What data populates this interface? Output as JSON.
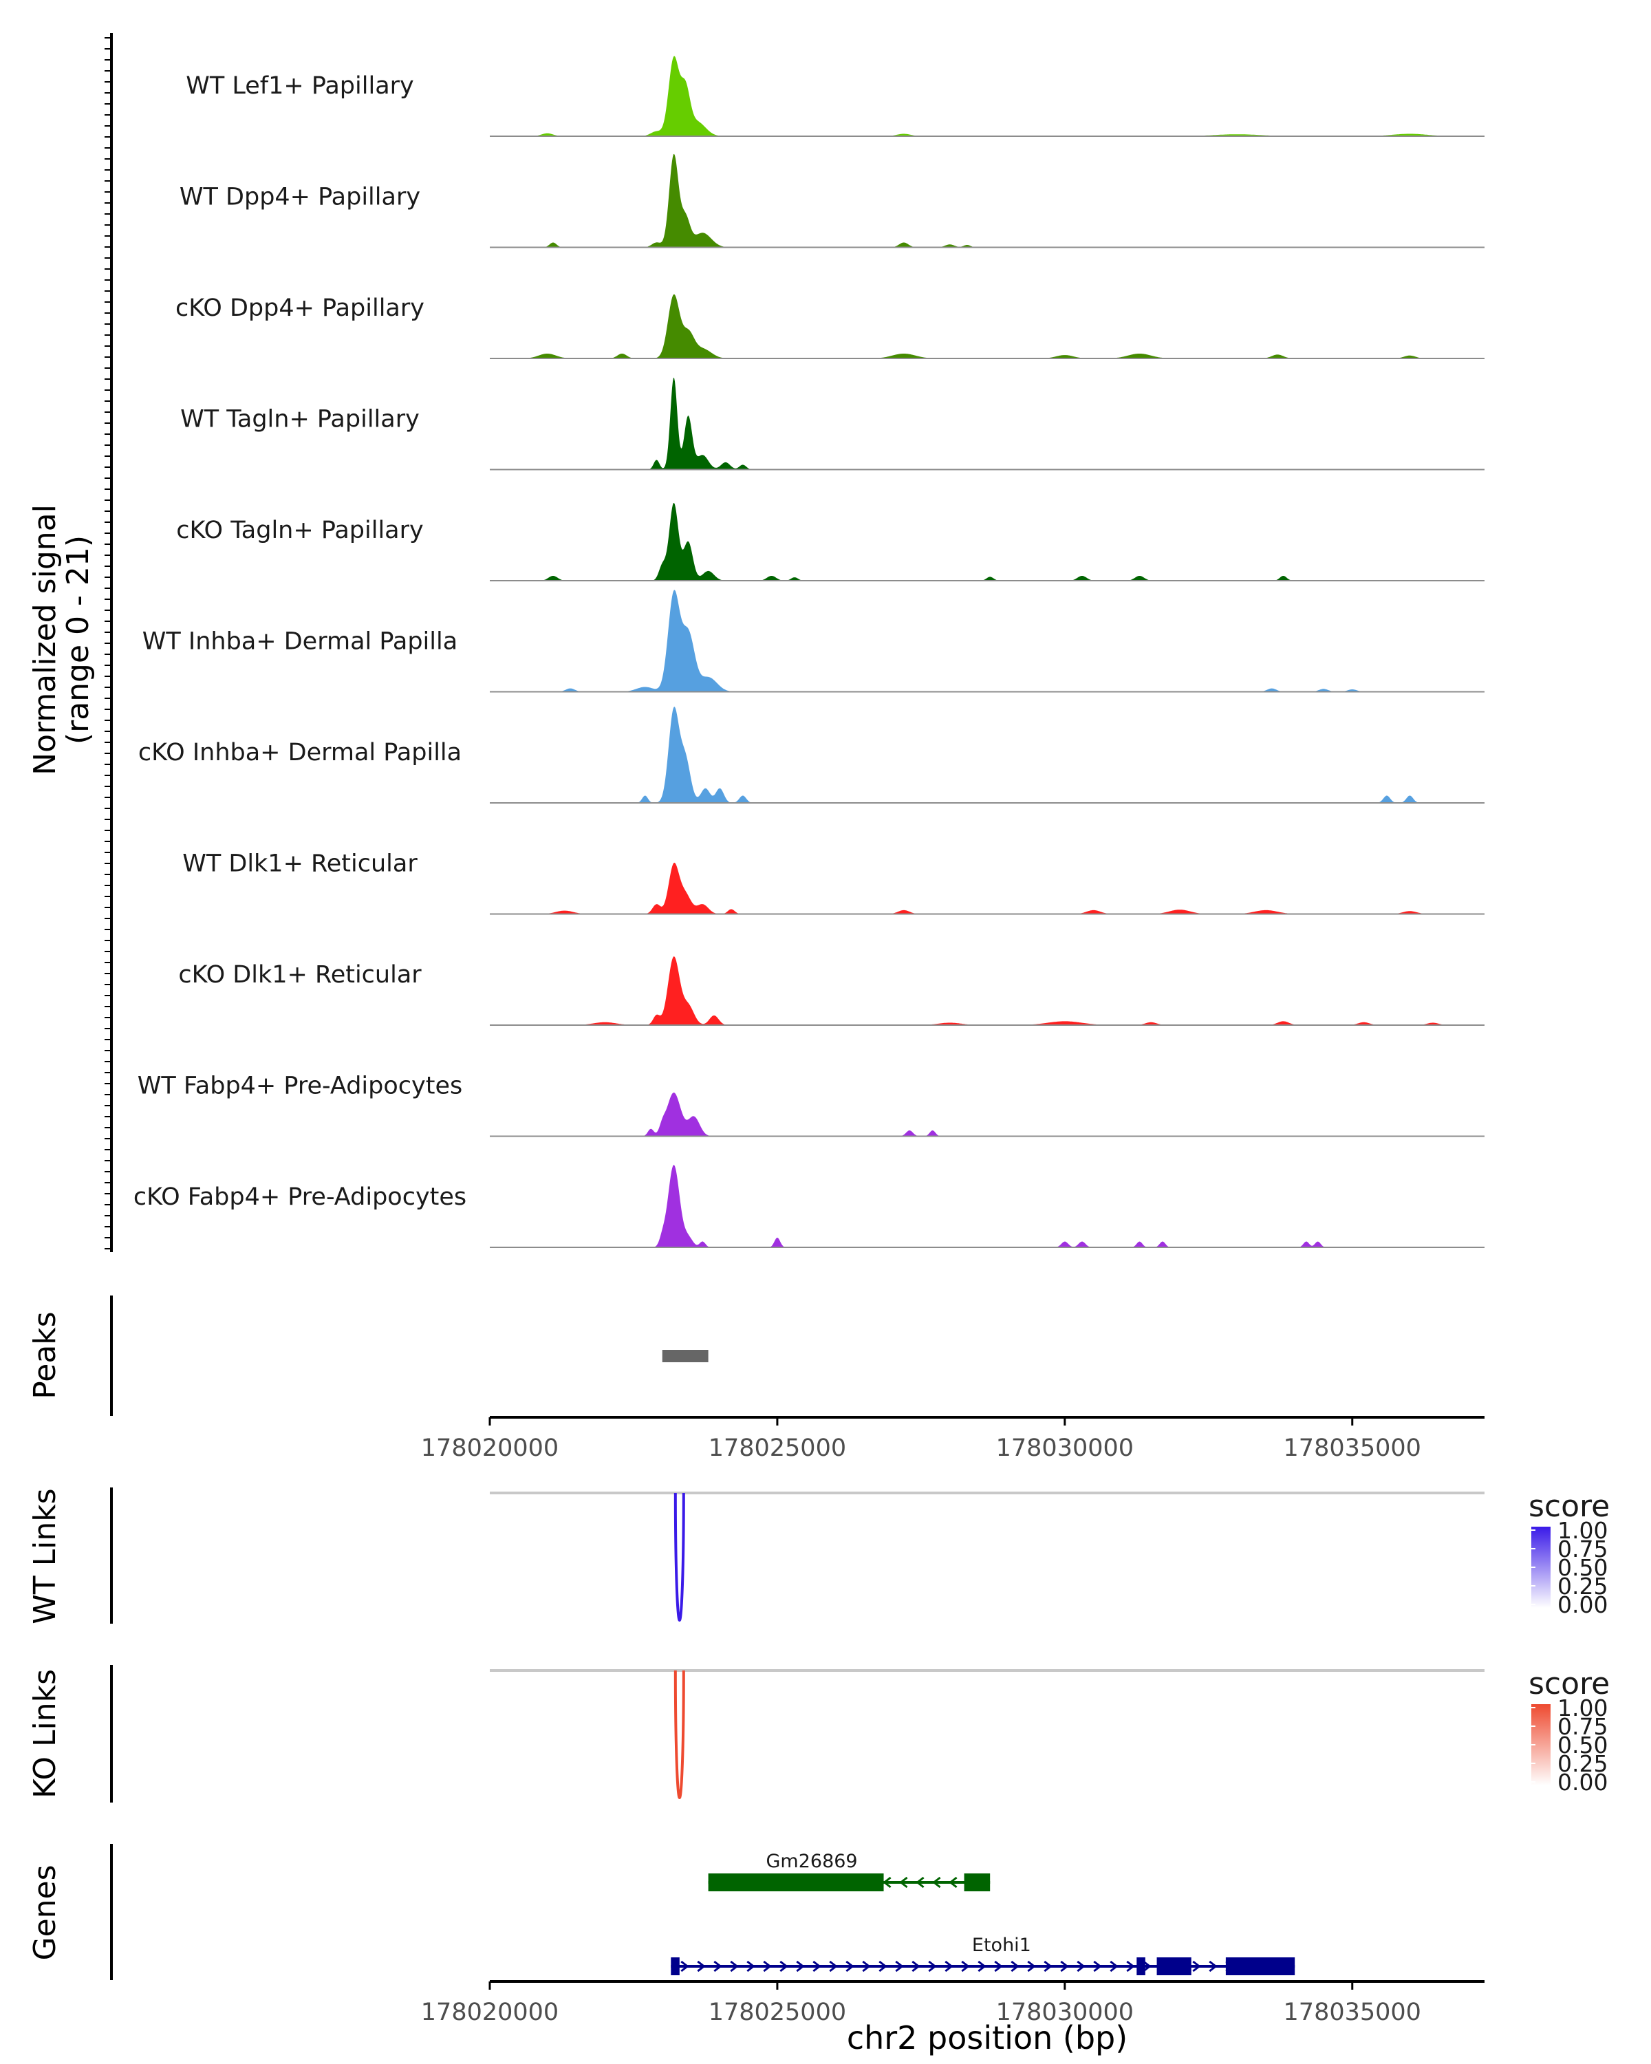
{
  "chart_data": {
    "type": "area",
    "title": "",
    "chromosome": "chr2",
    "xlabel": "chr2 position (bp)",
    "xlim": [
      178020000,
      178037300
    ],
    "x_ticks": [
      178020000,
      178025000,
      178030000,
      178035000
    ],
    "x_tick_labels": [
      "178020000",
      "178025000",
      "178030000",
      "178035000"
    ],
    "coverage_ylabel_line1": "Normalized signal",
    "coverage_ylabel_line2": "(range 0 - 21)",
    "ylim": [
      0,
      21
    ],
    "tracks": [
      {
        "name": "WT Lef1+ Papillary",
        "color": "#66cd00",
        "peaks": [
          [
            178023200,
            16,
            90
          ],
          [
            178023400,
            9,
            80
          ],
          [
            178023600,
            3,
            150
          ],
          [
            178021000,
            0.6,
            100
          ],
          [
            178022900,
            1.0,
            100
          ],
          [
            178027200,
            0.5,
            120
          ],
          [
            178033000,
            0.4,
            400
          ],
          [
            178036000,
            0.5,
            300
          ]
        ]
      },
      {
        "name": "WT Dpp4+ Papillary",
        "color": "#458b00",
        "peaks": [
          [
            178023200,
            19,
            80
          ],
          [
            178023400,
            6,
            80
          ],
          [
            178023700,
            3,
            150
          ],
          [
            178021100,
            1.0,
            60
          ],
          [
            178022900,
            1.0,
            80
          ],
          [
            178027200,
            1.0,
            80
          ],
          [
            178028000,
            0.6,
            80
          ],
          [
            178028300,
            0.5,
            60
          ]
        ]
      },
      {
        "name": "cKO Dpp4+ Papillary",
        "color": "#458b00",
        "peaks": [
          [
            178023200,
            13,
            100
          ],
          [
            178023450,
            5,
            100
          ],
          [
            178023700,
            2,
            150
          ],
          [
            178021000,
            1.0,
            150
          ],
          [
            178022300,
            1.0,
            80
          ],
          [
            178027200,
            1.0,
            200
          ],
          [
            178030000,
            0.7,
            150
          ],
          [
            178031300,
            1.0,
            200
          ],
          [
            178033700,
            0.8,
            100
          ],
          [
            178036000,
            0.6,
            100
          ]
        ]
      },
      {
        "name": "WT Tagln+ Papillary",
        "color": "#006400",
        "peaks": [
          [
            178023200,
            19,
            60
          ],
          [
            178023450,
            11,
            70
          ],
          [
            178022900,
            2.0,
            50
          ],
          [
            178023700,
            3,
            100
          ],
          [
            178024100,
            1.5,
            80
          ],
          [
            178024400,
            1.0,
            60
          ]
        ]
      },
      {
        "name": "cKO Tagln+ Papillary",
        "color": "#006400",
        "peaks": [
          [
            178023200,
            16,
            80
          ],
          [
            178023450,
            8,
            80
          ],
          [
            178023000,
            3,
            60
          ],
          [
            178023800,
            2,
            100
          ],
          [
            178021100,
            1.0,
            80
          ],
          [
            178024900,
            1.0,
            80
          ],
          [
            178025300,
            0.7,
            60
          ],
          [
            178028700,
            0.8,
            60
          ],
          [
            178030300,
            1.0,
            80
          ],
          [
            178031300,
            1.0,
            80
          ],
          [
            178033800,
            1.0,
            60
          ]
        ]
      },
      {
        "name": "WT Inhba+ Dermal Papilla",
        "color": "#56a0e0",
        "peaks": [
          [
            178023200,
            20,
            100
          ],
          [
            178023450,
            12,
            110
          ],
          [
            178023800,
            3,
            150
          ],
          [
            178022700,
            1.0,
            150
          ],
          [
            178021400,
            0.7,
            80
          ],
          [
            178033600,
            0.7,
            80
          ],
          [
            178034500,
            0.6,
            80
          ],
          [
            178035000,
            0.5,
            80
          ]
        ]
      },
      {
        "name": "cKO Inhba+ Dermal Papilla",
        "color": "#56a0e0",
        "peaks": [
          [
            178023200,
            19,
            90
          ],
          [
            178023400,
            9,
            90
          ],
          [
            178023750,
            3,
            80
          ],
          [
            178024000,
            3,
            70
          ],
          [
            178024400,
            1.5,
            60
          ],
          [
            178022700,
            1.5,
            50
          ],
          [
            178035600,
            1.5,
            60
          ],
          [
            178036000,
            1.5,
            60
          ]
        ]
      },
      {
        "name": "WT Dlk1+ Reticular",
        "color": "#ff2020",
        "peaks": [
          [
            178023200,
            10,
            90
          ],
          [
            178023400,
            4,
            100
          ],
          [
            178022900,
            2,
            70
          ],
          [
            178023700,
            2,
            100
          ],
          [
            178024200,
            1.0,
            60
          ],
          [
            178021300,
            0.7,
            150
          ],
          [
            178027200,
            0.8,
            100
          ],
          [
            178030500,
            0.8,
            120
          ],
          [
            178032000,
            0.9,
            180
          ],
          [
            178033500,
            0.8,
            200
          ],
          [
            178036000,
            0.6,
            120
          ]
        ]
      },
      {
        "name": "cKO Dlk1+ Reticular",
        "color": "#ff2020",
        "peaks": [
          [
            178023200,
            14,
            100
          ],
          [
            178023450,
            4,
            100
          ],
          [
            178023900,
            2,
            80
          ],
          [
            178022900,
            2,
            60
          ],
          [
            178022000,
            0.6,
            200
          ],
          [
            178028000,
            0.5,
            200
          ],
          [
            178030000,
            0.8,
            300
          ],
          [
            178031500,
            0.6,
            100
          ],
          [
            178033800,
            0.8,
            100
          ],
          [
            178035200,
            0.6,
            100
          ],
          [
            178036400,
            0.5,
            100
          ]
        ]
      },
      {
        "name": "WT Fabp4+ Pre-Adipocytes",
        "color": "#a030e0",
        "peaks": [
          [
            178023200,
            9,
            120
          ],
          [
            178023550,
            4,
            100
          ],
          [
            178022800,
            1.5,
            50
          ],
          [
            178023000,
            1.5,
            50
          ],
          [
            178027300,
            1.2,
            60
          ],
          [
            178027700,
            1.2,
            50
          ]
        ]
      },
      {
        "name": "cKO Fabp4+ Pre-Adipocytes",
        "color": "#a030e0",
        "peaks": [
          [
            178023200,
            17,
            100
          ],
          [
            178023450,
            2,
            80
          ],
          [
            178023000,
            1.5,
            50
          ],
          [
            178023700,
            1.2,
            50
          ],
          [
            178025000,
            2,
            50
          ],
          [
            178030000,
            1.2,
            60
          ],
          [
            178030300,
            1.2,
            60
          ],
          [
            178031300,
            1.2,
            50
          ],
          [
            178031700,
            1.2,
            50
          ],
          [
            178034200,
            1.2,
            50
          ],
          [
            178034400,
            1.2,
            50
          ]
        ]
      }
    ],
    "peaks_track": {
      "label": "Peaks",
      "intervals": [
        [
          178023000,
          178023800
        ]
      ],
      "color": "#666666"
    },
    "links": [
      {
        "label": "WT Links",
        "legend_title": "score",
        "color": "#3a1ae8",
        "anchor": 178023300,
        "score": 1.0,
        "legend_ticks": [
          "1.00",
          "0.75",
          "0.50",
          "0.25",
          "0.00"
        ],
        "legend_low_color": "#ffffff"
      },
      {
        "label": "KO Links",
        "legend_title": "score",
        "color": "#ee4a30",
        "anchor": 178023300,
        "score": 1.0,
        "legend_ticks": [
          "1.00",
          "0.75",
          "0.50",
          "0.25",
          "0.00"
        ],
        "legend_low_color": "#ffffff"
      }
    ],
    "genes_track": {
      "label": "Genes",
      "genes": [
        {
          "name": "Gm26869",
          "strand": "-",
          "start": 178023800,
          "end": 178028700,
          "color": "#006400",
          "exons": [
            [
              178023800,
              178026850
            ],
            [
              178028250,
              178028700
            ]
          ]
        },
        {
          "name": "Etohi1",
          "strand": "+",
          "start": 178023150,
          "end": 178034000,
          "color": "#00008b",
          "exons": [
            [
              178023150,
              178023300
            ],
            [
              178031250,
              178031400
            ],
            [
              178031600,
              178032200
            ],
            [
              178032800,
              178034000
            ]
          ]
        }
      ]
    }
  }
}
